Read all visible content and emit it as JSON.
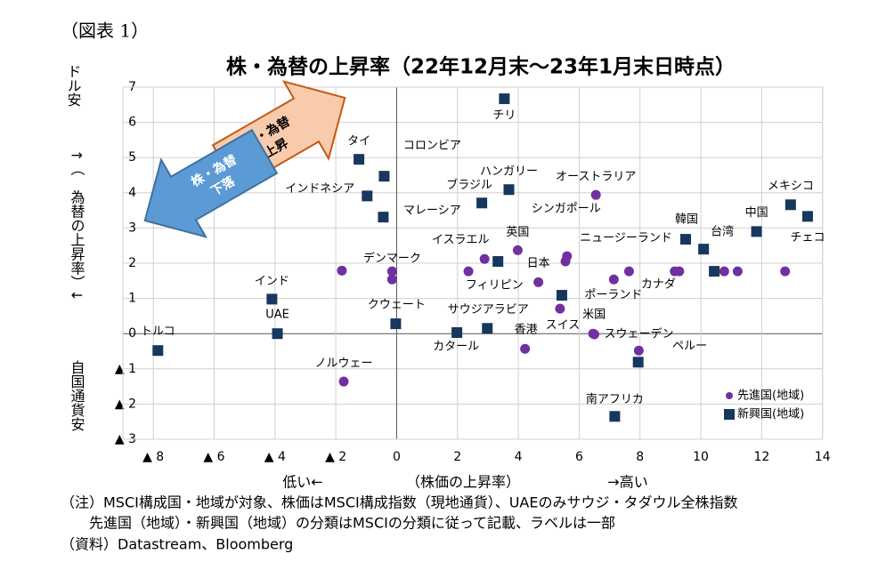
{
  "chart_data": {
    "type": "scatter",
    "figure_label": "（図表 1）",
    "title": "株・為替の上昇率（22年12月末～23年1月末日時点）",
    "y_label_parts": [
      "ドル安",
      "↑（　為替の上昇率）↓",
      "自国通貨安"
    ],
    "x_label_parts": [
      "低い←",
      "（株価の上昇率）",
      "→高い"
    ],
    "arrow_texts": {
      "up": [
        "株・為替",
        "上昇"
      ],
      "down": [
        "株・為替",
        "下落"
      ]
    },
    "xlim": [
      -9,
      14
    ],
    "xticks": [
      {
        "value": -8,
        "label": "▲ 8"
      },
      {
        "value": -6,
        "label": "▲ 6"
      },
      {
        "value": -4,
        "label": "▲ 4"
      },
      {
        "value": -2,
        "label": "▲ 2"
      },
      0,
      2,
      4,
      6,
      8,
      10,
      12,
      14
    ],
    "ylim": [
      -3,
      7
    ],
    "yticks": [
      {
        "value": -3,
        "label": "▲ 3"
      },
      {
        "value": -2,
        "label": "▲ 2"
      },
      {
        "value": -1,
        "label": "▲ 1"
      },
      0,
      1,
      2,
      3,
      4,
      5,
      6,
      7
    ],
    "grid": true,
    "legend": "lower right",
    "series": [
      {
        "name": "先進国(地域)",
        "color": "#7030a0",
        "marker": "circle",
        "x": [
          -1.8,
          -0.15,
          -0.15,
          -1.74,
          2.89,
          2.36,
          3.98,
          4.66,
          5.6,
          5.55,
          6.55,
          5.37,
          4.22,
          6.46,
          6.5,
          7.14,
          7.64,
          9.14,
          9.29,
          10.77,
          11.21,
          12.77,
          7.96
        ],
        "values": [
          1.79,
          1.77,
          1.54,
          -1.36,
          2.12,
          1.77,
          2.37,
          1.46,
          2.2,
          2.05,
          3.94,
          0.71,
          -0.43,
          0,
          -0.02,
          1.54,
          1.77,
          1.77,
          1.77,
          1.77,
          1.77,
          1.77,
          -0.48
        ],
        "labels": [
          null,
          "デンマーク",
          null,
          "ノルウェー",
          "イスラエル",
          null,
          "英国",
          "日本",
          "シンガポール",
          "ニュージーランド",
          "オーストラリア",
          "スイス",
          "香港",
          "米国",
          "スウェーデン",
          "カナダ",
          null,
          null,
          null,
          null,
          null,
          null,
          null
        ]
      },
      {
        "name": "新興国(地域)",
        "color": "#17375e",
        "marker": "square",
        "x": [
          -7.85,
          -4.1,
          -3.92,
          -1.24,
          -0.41,
          -0.97,
          -0.44,
          -0.03,
          3.54,
          3.69,
          2.8,
          3.33,
          1.98,
          2.98,
          5.43,
          9.5,
          10.09,
          10.44,
          11.83,
          12.95,
          13.51,
          7.94,
          7.17
        ],
        "values": [
          -0.48,
          0.98,
          0,
          4.95,
          4.47,
          3.91,
          3.31,
          0.28,
          6.67,
          4.09,
          3.71,
          2.05,
          0.03,
          0.15,
          1.09,
          2.68,
          2.4,
          1.77,
          2.9,
          3.66,
          3.33,
          -0.81,
          -2.35
        ],
        "labels": [
          "トルコ",
          "インド",
          "UAE",
          "タイ",
          "コロンビア",
          "インドネシア",
          "マレーシア",
          "クウェート",
          "チリ",
          "ハンガリー",
          "ブラジル",
          "フィリピン",
          "カタール",
          "サウジアラビア",
          "ポーランド",
          "韓国",
          "台湾",
          null,
          "中国",
          "メキシコ",
          "チェコ",
          "ペルー",
          "南アフリカ"
        ]
      }
    ],
    "notes": [
      "（注）MSCI構成国・地域が対象、株価はMSCI構成指数（現地通貨）、UAEのみサウジ・タダウル全株指数",
      "　　先進国（地域）・新興国（地域）の分類はMSCIの分類に従って記載、ラベルは一部",
      "（資料）Datastream、Bloomberg"
    ]
  }
}
